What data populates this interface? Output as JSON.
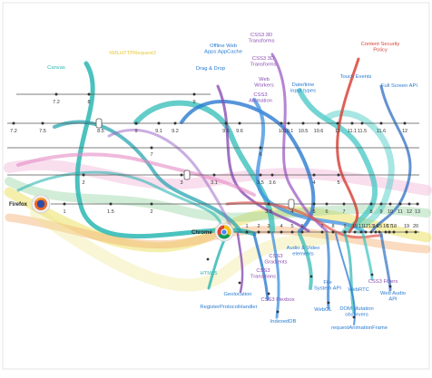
{
  "colors": {
    "teal": "#2bb7b3",
    "blue": "#2a7bd1",
    "purple": "#8a4fb3",
    "red": "#d8453b",
    "green": "#58b85b",
    "yellow": "#e4d23c",
    "orange": "#f08a3a",
    "pink": "#e58bc4",
    "black": "#222222"
  },
  "browsers": {
    "firefox": "Firefox",
    "chrome": "Chrome"
  },
  "timelines": {
    "top_row": [
      "7.2",
      "8",
      "9"
    ],
    "ie_row": [
      "7.2",
      "7.5",
      "8.5",
      "9",
      "9.1",
      "9.2",
      "9.5",
      "9.6",
      "10",
      "10.1",
      "10.5",
      "10.6",
      "11",
      "11.1",
      "11.5",
      "11.6",
      "12"
    ],
    "mid_row": [
      "7",
      "6"
    ],
    "ff_upper_row": [
      "2",
      "3",
      "3.1",
      "3.5",
      "3.6",
      "4",
      "5"
    ],
    "ff_row": [
      "1",
      "1.5",
      "2",
      "3.5",
      "4",
      "5",
      "6",
      "7",
      "8",
      "9",
      "10",
      "11",
      "12",
      "13"
    ],
    "chrome_row": [
      "1",
      "2",
      "3",
      "4",
      "5",
      "6",
      "7",
      "8",
      "9",
      "10",
      "11",
      "12",
      "13",
      "14",
      "15",
      "16",
      "17",
      "18",
      "19",
      "20"
    ]
  },
  "features": {
    "canvas": "Canvas",
    "xmlhttprequest2": "XMLHTTPRequest2",
    "offline": "Offline Web\nApps:AppCache",
    "drag_drop": "Drag & Drop",
    "css3_3d_a": "CSS3 3D\nTransforms",
    "css3_3d_b": "CSS3 3D\nTransforms",
    "web_workers": "Web\nWorkers",
    "css3_animation": "CSS3\nAnimation",
    "datetime": "Date/time\ninput types",
    "csp": "Content Security\nPolicy",
    "touch_events": "Touch Events",
    "full_screen": "Full Screen API",
    "html5": "HTML5",
    "register_protocol": "RegisterProtocolHandler",
    "geolocation": "Geolocation",
    "css3_transitions": "CSS3\nTransitions",
    "css3_gradients": "CSS3\nGradients",
    "css3_flexbox": "CSS3 Flexbox",
    "indexeddb": "IndexedDB",
    "audio_video": "Audio & Video\nelements",
    "file_system": "File\nSystem API",
    "webgl": "WebGL",
    "webrtc": "WebRTC",
    "dom_mutation": "DOM Mutation\nobservers",
    "request_animation_frame": "requestAnimationFrame",
    "css3_filters": "CSS3 Filters",
    "web_audio": "Web Audio\nAPI"
  }
}
